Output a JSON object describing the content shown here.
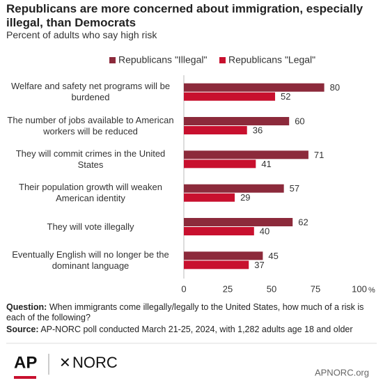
{
  "chart_data": {
    "type": "hbar",
    "title": "Republicans are more concerned about immigration, especially illegal, than Democrats",
    "subtitle": "Percent of adults who say high risk",
    "categories": [
      "Welfare and safety net programs will be burdened",
      "The number of jobs available to American workers will be reduced",
      "They will commit crimes in the United States",
      "Their population growth will weaken American identity",
      "They will vote illegally",
      "Eventually English will no longer be the dominant language"
    ],
    "series": [
      {
        "name": "Republicans \"Illegal\"",
        "color": "#8c2a3b",
        "values": [
          80,
          60,
          71,
          57,
          62,
          45
        ]
      },
      {
        "name": "Republicans \"Legal\"",
        "color": "#c8102e",
        "values": [
          52,
          36,
          41,
          29,
          40,
          37
        ]
      }
    ],
    "xlim": [
      0,
      100
    ],
    "xticks": [
      0,
      25,
      50,
      75,
      100
    ],
    "x_unit": "%",
    "grid": false,
    "legend": "top",
    "question_label": "Question:",
    "question": "When immigrants come illegally/legally to the United States, how much of a risk is each of the following?",
    "source_label": "Source:",
    "source": "AP-NORC poll conducted March 21-25, 2024, with 1,282 adults age 18 and older",
    "logos": [
      "AP",
      "NORC"
    ],
    "url": "APNORC.org"
  }
}
